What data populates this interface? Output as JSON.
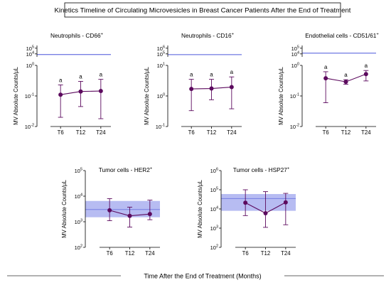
{
  "figure": {
    "title": "Kinetics Timeline of Circulating Microvesicles in Breast Cancer Patients After the End of Treatment",
    "footer_label": "Time After the End of Treatment (Months)"
  },
  "colors": {
    "series": "#5c0a5e",
    "band_fill": "#aab0f0",
    "band_line": "#6b73e0",
    "axis": "#000000"
  },
  "chart_data": [
    {
      "type": "line",
      "title_main": "Neutrophils - CD66",
      "title_sup": "+",
      "ylabel": "MV Absolute Counts/µL",
      "y_scale": "log",
      "categories": [
        "T6",
        "T12",
        "T24"
      ],
      "values": [
        0.11,
        0.14,
        0.145
      ],
      "error_low": [
        0.02,
        0.045,
        0.018
      ],
      "error_high": [
        0.23,
        0.3,
        0.35
      ],
      "point_labels": [
        "a",
        "a",
        "a"
      ],
      "lower_axis": {
        "ylim": [
          0.01,
          1
        ],
        "ticks": [
          {
            "v": 1,
            "base": "10",
            "exp": "0"
          },
          {
            "v": 0.1,
            "base": "10",
            "exp": "-1"
          },
          {
            "v": 0.01,
            "base": "10",
            "exp": "-2"
          }
        ]
      },
      "upper_axis": {
        "ylim": [
          3000,
          300000
        ],
        "ticks": [
          {
            "v": 100000,
            "base": "10",
            "exp": "5"
          },
          {
            "v": 10000,
            "base": "10",
            "exp": "4"
          }
        ]
      },
      "reference_band": {
        "low": 7000,
        "high": 9000,
        "mid": 8000
      }
    },
    {
      "type": "line",
      "title_main": "Neutrophils - CD16",
      "title_sup": "+",
      "ylabel": "MV Absolute Counts/µL",
      "y_scale": "log",
      "categories": [
        "T6",
        "T12",
        "T24"
      ],
      "values": [
        1.7,
        1.75,
        1.95
      ],
      "error_low": [
        0.33,
        0.75,
        0.38
      ],
      "error_high": [
        3.5,
        3.5,
        4.2
      ],
      "point_labels": [
        "a",
        "a",
        "a"
      ],
      "lower_axis": {
        "ylim": [
          0.1,
          10
        ],
        "ticks": [
          {
            "v": 10,
            "base": "10",
            "exp": "1"
          },
          {
            "v": 1,
            "base": "10",
            "exp": "0"
          },
          {
            "v": 0.1,
            "base": "10",
            "exp": "-1"
          }
        ]
      },
      "upper_axis": {
        "ylim": [
          30000,
          3000000
        ],
        "ticks": [
          {
            "v": 1000000,
            "base": "10",
            "exp": "6"
          },
          {
            "v": 100000,
            "base": "10",
            "exp": "5"
          }
        ]
      },
      "reference_band": {
        "low": 60000,
        "high": 90000,
        "mid": 75000
      }
    },
    {
      "type": "line",
      "title_main": "Endothelial cells - CD51/61",
      "title_sup": "+",
      "ylabel": "MV Absolute Counts/µL",
      "y_scale": "log",
      "categories": [
        "T6",
        "T12",
        "T24"
      ],
      "values": [
        0.38,
        0.29,
        0.52
      ],
      "error_low": [
        0.06,
        0.24,
        0.31
      ],
      "error_high": [
        0.62,
        0.34,
        0.68
      ],
      "point_labels": [
        "a",
        "a",
        "a"
      ],
      "lower_axis": {
        "ylim": [
          0.01,
          1
        ],
        "ticks": [
          {
            "v": 1,
            "base": "10",
            "exp": "0"
          },
          {
            "v": 0.1,
            "base": "10",
            "exp": "-1"
          },
          {
            "v": 0.01,
            "base": "10",
            "exp": "-2"
          }
        ]
      },
      "upper_axis": {
        "ylim": [
          3000,
          300000
        ],
        "ticks": [
          {
            "v": 100000,
            "base": "10",
            "exp": "5"
          },
          {
            "v": 10000,
            "base": "10",
            "exp": "4"
          }
        ]
      },
      "reference_band": {
        "low": 12000,
        "high": 16000,
        "mid": 14000
      }
    },
    {
      "type": "line",
      "title_main": "Tumor cells - HER2",
      "title_sup": "+",
      "ylabel": "MV Absolute Counts/µL",
      "y_scale": "log",
      "categories": [
        "T6",
        "T12",
        "T24"
      ],
      "values": [
        2800,
        1700,
        2000
      ],
      "error_low": [
        1100,
        620,
        1200
      ],
      "error_high": [
        8000,
        3700,
        7000
      ],
      "point_labels": [
        "",
        "",
        ""
      ],
      "lower_axis": {
        "ylim": [
          100,
          100000
        ],
        "ticks": [
          {
            "v": 100000,
            "base": "10",
            "exp": "5"
          },
          {
            "v": 10000,
            "base": "10",
            "exp": "4"
          },
          {
            "v": 1000,
            "base": "10",
            "exp": "3"
          },
          {
            "v": 100,
            "base": "10",
            "exp": "2"
          }
        ]
      },
      "reference_band": {
        "low": 1500,
        "high": 6500,
        "mid": 3000
      }
    },
    {
      "type": "line",
      "title_main": "Tumor cells - HSP27",
      "title_sup": "+",
      "ylabel": "MV Absolute Counts/µL",
      "y_scale": "log",
      "categories": [
        "T6",
        "T12",
        "T24"
      ],
      "values": [
        21000,
        6000,
        22000
      ],
      "error_low": [
        4500,
        1100,
        1500
      ],
      "error_high": [
        100000,
        80000,
        65000
      ],
      "point_labels": [
        "",
        "",
        ""
      ],
      "lower_axis": {
        "ylim": [
          100,
          1000000
        ],
        "ticks": [
          {
            "v": 1000000,
            "base": "10",
            "exp": "6"
          },
          {
            "v": 100000,
            "base": "10",
            "exp": "5"
          },
          {
            "v": 10000,
            "base": "10",
            "exp": "4"
          },
          {
            "v": 1000,
            "base": "10",
            "exp": "3"
          },
          {
            "v": 100,
            "base": "10",
            "exp": "2"
          }
        ]
      },
      "reference_band": {
        "low": 8000,
        "high": 60000,
        "mid": 35000
      }
    }
  ]
}
